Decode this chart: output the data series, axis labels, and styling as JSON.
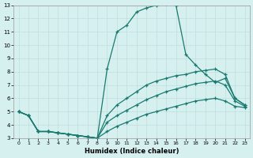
{
  "xlabel": "Humidex (Indice chaleur)",
  "bg_color": "#d6f0f0",
  "grid_color": "#c0dede",
  "line_color": "#1a7a6e",
  "xlim": [
    -0.5,
    23.5
  ],
  "ylim": [
    3,
    13
  ],
  "xticks": [
    0,
    1,
    2,
    3,
    4,
    5,
    6,
    7,
    8,
    9,
    10,
    11,
    12,
    13,
    14,
    15,
    16,
    17,
    18,
    19,
    20,
    21,
    22,
    23
  ],
  "yticks": [
    3,
    4,
    5,
    6,
    7,
    8,
    9,
    10,
    11,
    12,
    13
  ],
  "lines": [
    {
      "x": [
        0,
        1,
        2,
        3,
        4,
        5,
        6,
        7,
        8,
        9,
        10,
        11,
        12,
        13,
        14,
        15,
        16,
        17,
        18,
        19,
        20,
        21,
        22,
        23
      ],
      "y": [
        5.0,
        4.7,
        3.5,
        3.5,
        3.4,
        3.3,
        3.2,
        3.1,
        3.0,
        8.2,
        11.0,
        11.5,
        12.5,
        12.8,
        13.0,
        13.1,
        13.0,
        9.3,
        8.5,
        7.8,
        7.2,
        7.5,
        6.0,
        5.5
      ]
    },
    {
      "x": [
        0,
        1,
        2,
        3,
        4,
        5,
        6,
        7,
        8,
        9,
        10,
        11,
        12,
        13,
        14,
        15,
        16,
        17,
        18,
        19,
        20,
        21,
        22,
        23
      ],
      "y": [
        5.0,
        4.7,
        3.5,
        3.5,
        3.4,
        3.3,
        3.2,
        3.1,
        3.0,
        4.7,
        5.5,
        6.0,
        6.5,
        7.0,
        7.3,
        7.5,
        7.7,
        7.8,
        8.0,
        8.1,
        8.2,
        7.8,
        6.0,
        5.5
      ]
    },
    {
      "x": [
        0,
        1,
        2,
        3,
        4,
        5,
        6,
        7,
        8,
        9,
        10,
        11,
        12,
        13,
        14,
        15,
        16,
        17,
        18,
        19,
        20,
        21,
        22,
        23
      ],
      "y": [
        5.0,
        4.7,
        3.5,
        3.5,
        3.4,
        3.3,
        3.2,
        3.1,
        3.0,
        4.2,
        4.7,
        5.1,
        5.5,
        5.9,
        6.2,
        6.5,
        6.7,
        6.9,
        7.1,
        7.2,
        7.3,
        7.0,
        5.8,
        5.4
      ]
    },
    {
      "x": [
        0,
        1,
        2,
        3,
        4,
        5,
        6,
        7,
        8,
        9,
        10,
        11,
        12,
        13,
        14,
        15,
        16,
        17,
        18,
        19,
        20,
        21,
        22,
        23
      ],
      "y": [
        5.0,
        4.7,
        3.5,
        3.5,
        3.4,
        3.3,
        3.2,
        3.1,
        3.0,
        3.5,
        3.9,
        4.2,
        4.5,
        4.8,
        5.0,
        5.2,
        5.4,
        5.6,
        5.8,
        5.9,
        6.0,
        5.8,
        5.4,
        5.3
      ]
    }
  ]
}
